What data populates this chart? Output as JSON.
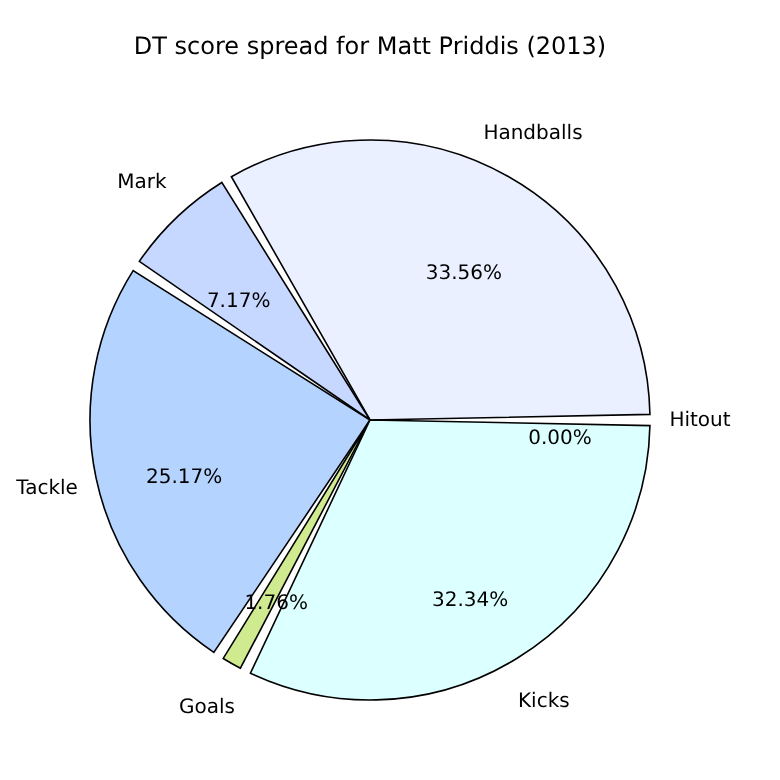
{
  "chart_data": {
    "type": "pie",
    "title": "DT score spread for Matt Priddis (2013)",
    "categories": [
      "Hitout",
      "Handballs",
      "Mark",
      "Tackle",
      "Goals",
      "Kicks"
    ],
    "values": [
      0.0,
      33.56,
      7.17,
      25.17,
      1.76,
      32.34
    ],
    "value_labels": [
      "0.00%",
      "33.56%",
      "7.17%",
      "25.17%",
      "1.76%",
      "32.34%"
    ],
    "colors": [
      "#f4f4ff",
      "#eaf0ff",
      "#c6d8ff",
      "#b4d4ff",
      "#d0ea90",
      "#dcffff"
    ]
  }
}
